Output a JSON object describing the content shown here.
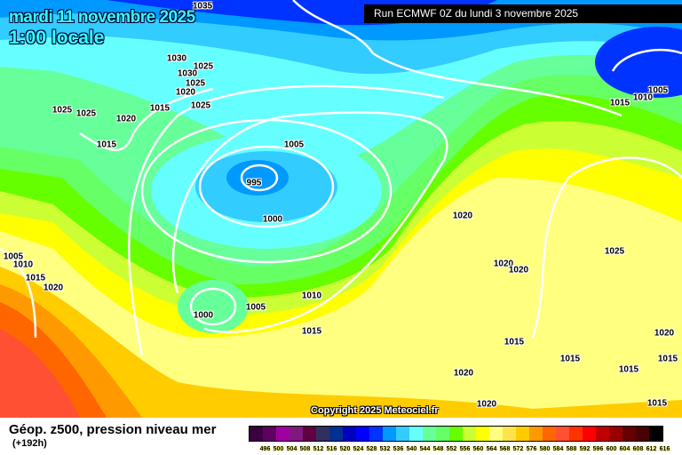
{
  "header": {
    "date": "mardi 11 novembre 2025",
    "time": "1:00 locale",
    "run": "Run ECMWF 0Z du lundi 3 novembre 2025"
  },
  "copyright": "Copyright 2025 Meteociel.fr",
  "footer": {
    "title": "Géop. z500, pression niveau mer",
    "subtitle": "(+192h)"
  },
  "legend": {
    "colors": [
      "#3a0040",
      "#600060",
      "#a000a0",
      "#801880",
      "#600040",
      "#303060",
      "#003090",
      "#0000c0",
      "#0000ff",
      "#0033ff",
      "#0099ff",
      "#33ccff",
      "#66ffff",
      "#66ff99",
      "#66ff66",
      "#66ff00",
      "#ccff33",
      "#ffff00",
      "#ffff80",
      "#ffe34d",
      "#ffcc00",
      "#ff9900",
      "#ff6600",
      "#ff5033",
      "#ff3300",
      "#ff0000",
      "#c00000",
      "#990000",
      "#660000",
      "#4a0000",
      "#000000"
    ],
    "labels": [
      "496",
      "500",
      "504",
      "508",
      "512",
      "516",
      "520",
      "524",
      "528",
      "532",
      "536",
      "540",
      "544",
      "548",
      "552",
      "556",
      "560",
      "564",
      "568",
      "572",
      "576",
      "580",
      "584",
      "588",
      "592",
      "596",
      "600",
      "604",
      "608",
      "612",
      "616"
    ]
  },
  "isobar_labels": [
    "1035",
    "1030",
    "1025",
    "1030",
    "1025",
    "1020",
    "1025",
    "1025",
    "1025",
    "1020",
    "1015",
    "1015",
    "1005",
    "995",
    "1000",
    "1020",
    "1005",
    "1010",
    "1015",
    "1005",
    "1010",
    "1015",
    "1020",
    "1020",
    "1000",
    "1005",
    "1010",
    "1015",
    "1020",
    "1025",
    "1015",
    "1015",
    "1015",
    "1020",
    "1020",
    "1015",
    "1020",
    "1015"
  ]
}
